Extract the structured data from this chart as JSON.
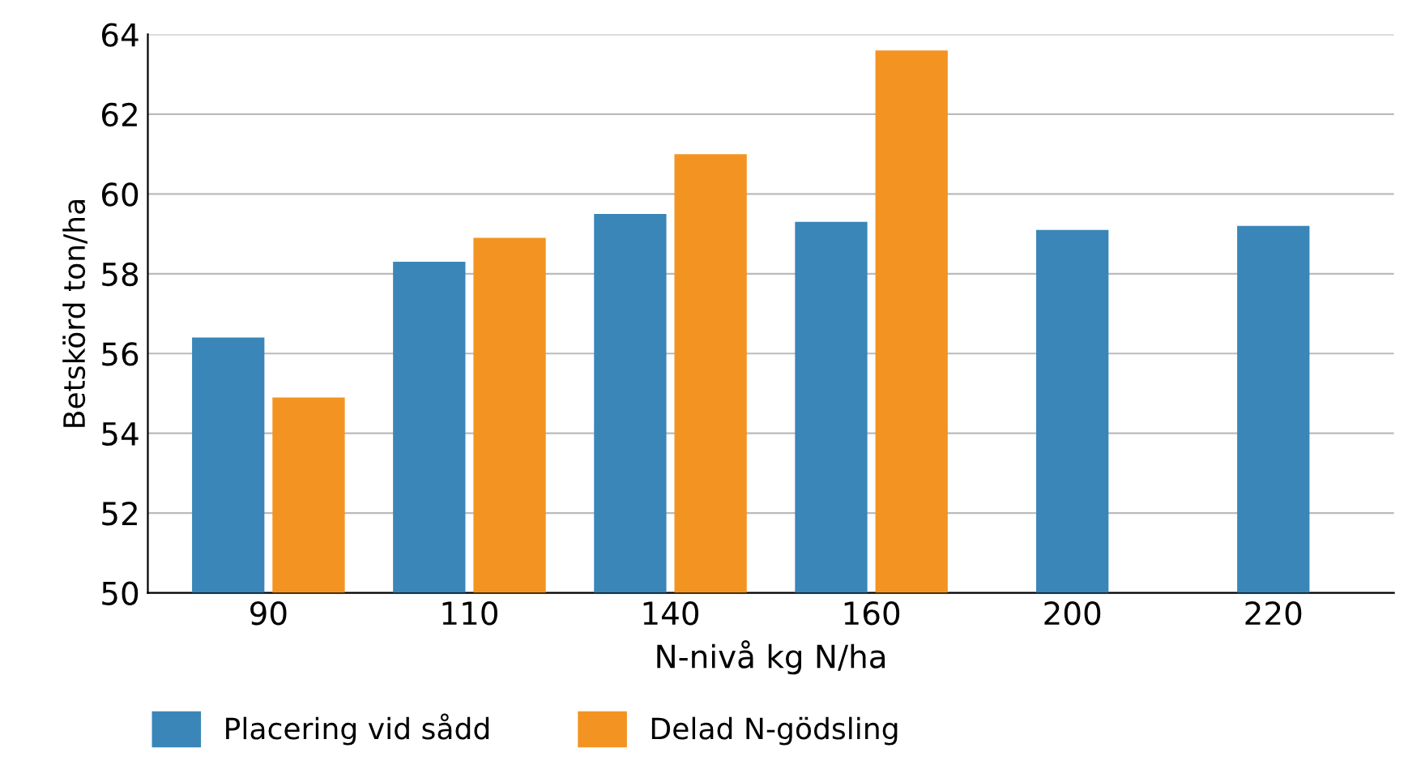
{
  "chart_data": {
    "type": "bar",
    "xlabel": "N-nivå kg N/ha",
    "ylabel": "Betskörd ton/ha",
    "categories": [
      "90",
      "110",
      "140",
      "160",
      "200",
      "220"
    ],
    "series": [
      {
        "name": "Placering vid sådd",
        "color": "#3a86b8",
        "values": [
          56.4,
          58.3,
          59.5,
          59.3,
          59.1,
          59.2
        ]
      },
      {
        "name": "Delad N-gödsling",
        "color": "#f39422",
        "values": [
          54.9,
          58.9,
          61.0,
          63.6,
          null,
          null
        ]
      }
    ],
    "ylim": [
      50,
      64
    ],
    "yticks": [
      50,
      52,
      54,
      56,
      58,
      60,
      62,
      64
    ],
    "grid": "y",
    "legend": "bottom left"
  }
}
